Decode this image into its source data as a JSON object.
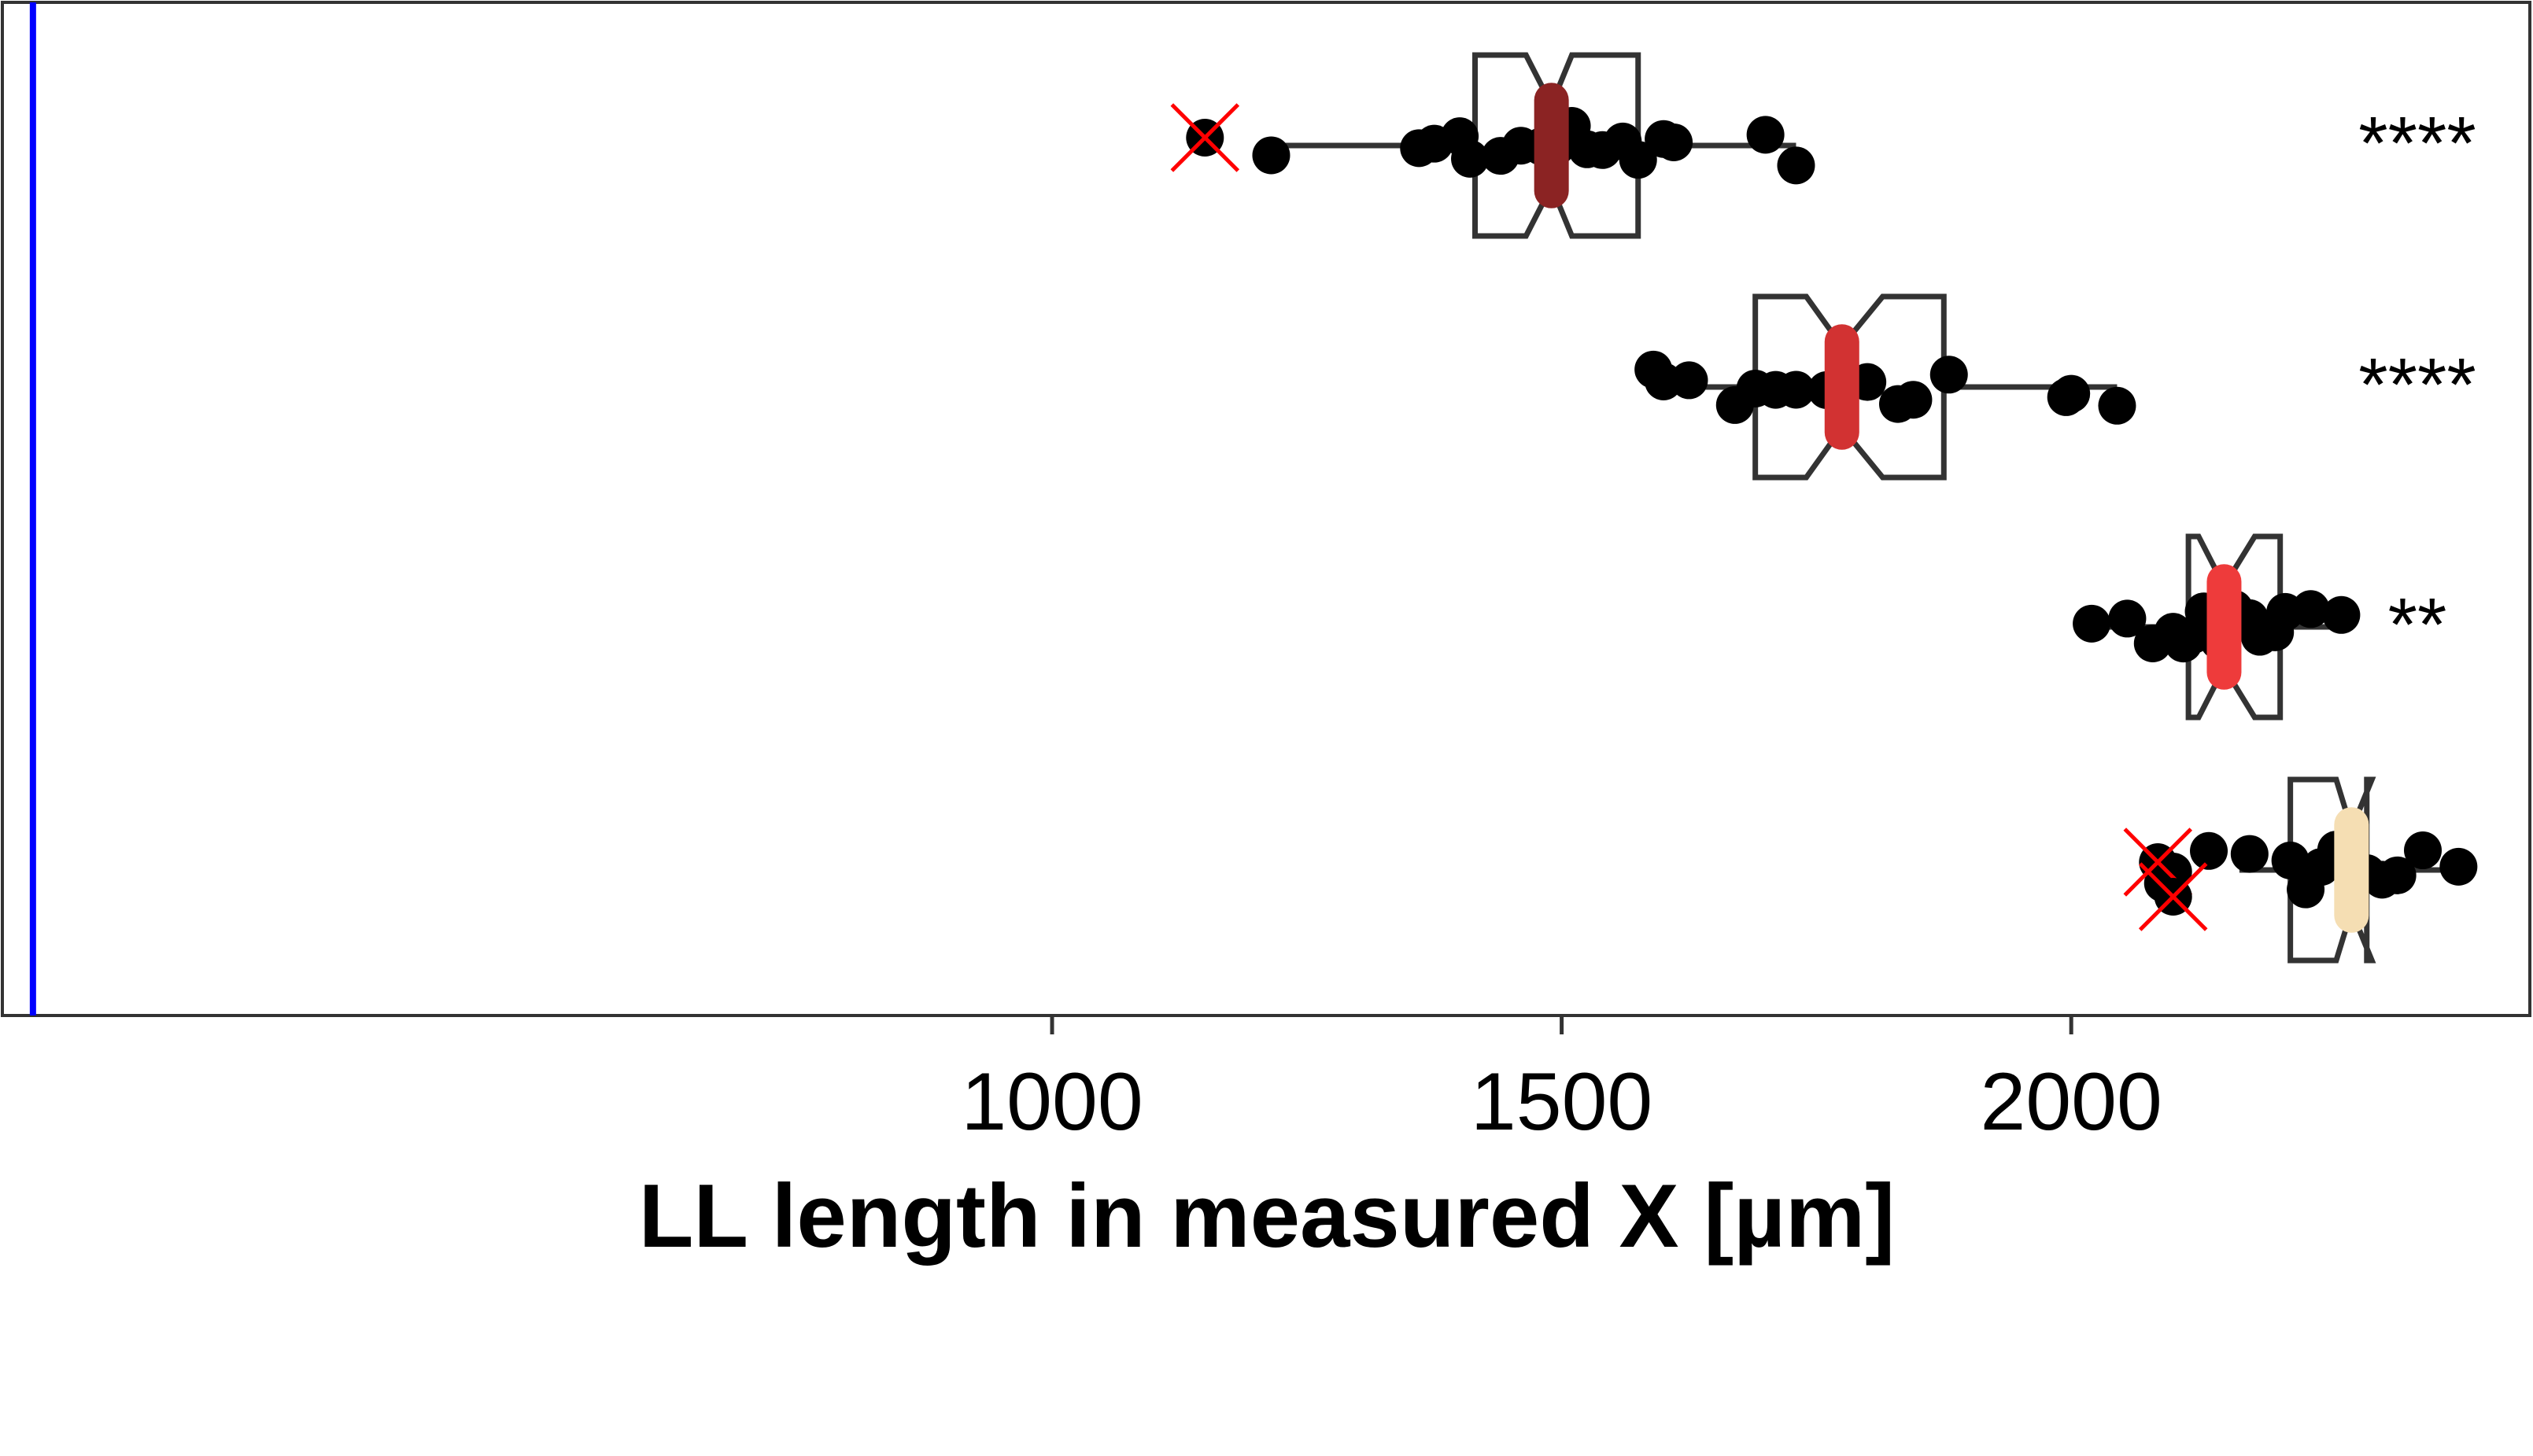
{
  "chart_data": {
    "type": "boxplot",
    "title": "",
    "xlabel": "LL length in measured X [µm]",
    "ylabel": "",
    "xlim": [
      -30,
      2450
    ],
    "xticks": [
      1000,
      1500,
      2000
    ],
    "reference_line": {
      "x": 0,
      "color": "#0000ff"
    },
    "grid": false,
    "legend": "none",
    "groups": [
      {
        "median": 1490,
        "median_color": "#8b2323",
        "q1": 1415,
        "q3": 1575,
        "notch": [
          1465,
          1510
        ],
        "whisker_low": 1220,
        "whisker_high": 1730,
        "significance": "****",
        "points": [
          1215,
          1360,
          1375,
          1400,
          1410,
          1440,
          1460,
          1480,
          1495,
          1510,
          1525,
          1540,
          1560,
          1575,
          1600,
          1610,
          1700,
          1730
        ],
        "excluded_points": [
          1150
        ]
      },
      {
        "median": 1775,
        "median_color": "#d23232",
        "q1": 1690,
        "q3": 1875,
        "notch": [
          1740,
          1815
        ],
        "whisker_low": 1600,
        "whisker_high": 2045,
        "significance": "****",
        "points": [
          1590,
          1600,
          1625,
          1670,
          1690,
          1710,
          1730,
          1760,
          1775,
          1800,
          1830,
          1845,
          1880,
          1995,
          2000,
          2045
        ],
        "excluded_points": []
      },
      {
        "median": 2150,
        "median_color": "#ee3b3b",
        "q1": 2115,
        "q3": 2205,
        "notch": [
          2125,
          2180
        ],
        "whisker_low": 2020,
        "whisker_high": 2265,
        "significance": "**",
        "points": [
          2020,
          2055,
          2080,
          2100,
          2110,
          2120,
          2130,
          2145,
          2160,
          2175,
          2185,
          2200,
          2210,
          2235,
          2265
        ],
        "excluded_points": []
      },
      {
        "median": 2275,
        "median_color": "#f5deb3",
        "q1": 2215,
        "q3": 2290,
        "notch": [
          2260,
          2295
        ],
        "whisker_low": 2165,
        "whisker_high": 2380,
        "significance": "",
        "points": [
          2090,
          2100,
          2135,
          2175,
          2215,
          2230,
          2245,
          2260,
          2275,
          2290,
          2305,
          2320,
          2345,
          2380
        ],
        "excluded_points": [
          2085,
          2100
        ]
      }
    ]
  }
}
